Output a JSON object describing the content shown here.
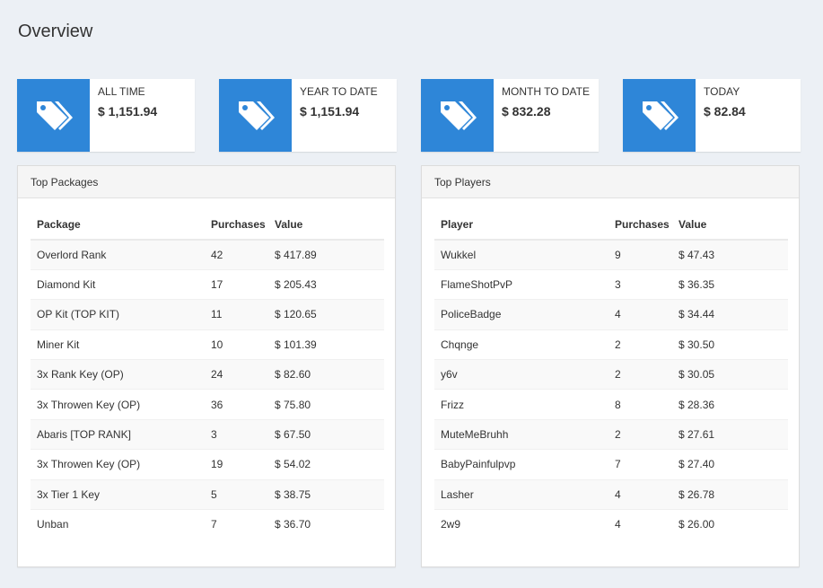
{
  "page": {
    "title": "Overview"
  },
  "stats": [
    {
      "label": "ALL TIME",
      "value": "$ 1,151.94",
      "icon": "tags-icon"
    },
    {
      "label": "YEAR TO DATE",
      "value": "$ 1,151.94",
      "icon": "tags-icon"
    },
    {
      "label": "MONTH TO DATE",
      "value": "$ 832.28",
      "icon": "tags-icon"
    },
    {
      "label": "TODAY",
      "value": "$ 82.84",
      "icon": "tags-icon"
    }
  ],
  "colors": {
    "accent": "#2e86d8",
    "background": "#ecf0f5"
  },
  "top_packages": {
    "title": "Top Packages",
    "columns": [
      "Package",
      "Purchases",
      "Value"
    ],
    "rows": [
      [
        "Overlord Rank",
        "42",
        "$ 417.89"
      ],
      [
        "Diamond Kit",
        "17",
        "$ 205.43"
      ],
      [
        "OP Kit (TOP KIT)",
        "11",
        "$ 120.65"
      ],
      [
        "Miner Kit",
        "10",
        "$ 101.39"
      ],
      [
        "3x Rank Key (OP)",
        "24",
        "$ 82.60"
      ],
      [
        "3x Throwen Key (OP)",
        "36",
        "$ 75.80"
      ],
      [
        "Abaris [TOP RANK]",
        "3",
        "$ 67.50"
      ],
      [
        "3x Throwen Key (OP)",
        "19",
        "$ 54.02"
      ],
      [
        "3x Tier 1 Key",
        "5",
        "$ 38.75"
      ],
      [
        "Unban",
        "7",
        "$ 36.70"
      ]
    ]
  },
  "top_players": {
    "title": "Top Players",
    "columns": [
      "Player",
      "Purchases",
      "Value"
    ],
    "rows": [
      [
        "Wukkel",
        "9",
        "$ 47.43"
      ],
      [
        "FlameShotPvP",
        "3",
        "$ 36.35"
      ],
      [
        "PoliceBadge",
        "4",
        "$ 34.44"
      ],
      [
        "Chqnge",
        "2",
        "$ 30.50"
      ],
      [
        "y6v",
        "2",
        "$ 30.05"
      ],
      [
        "Frizz",
        "8",
        "$ 28.36"
      ],
      [
        "MuteMeBruhh",
        "2",
        "$ 27.61"
      ],
      [
        "BabyPainfulpvp",
        "7",
        "$ 27.40"
      ],
      [
        "Lasher",
        "4",
        "$ 26.78"
      ],
      [
        "2w9",
        "4",
        "$ 26.00"
      ]
    ]
  }
}
